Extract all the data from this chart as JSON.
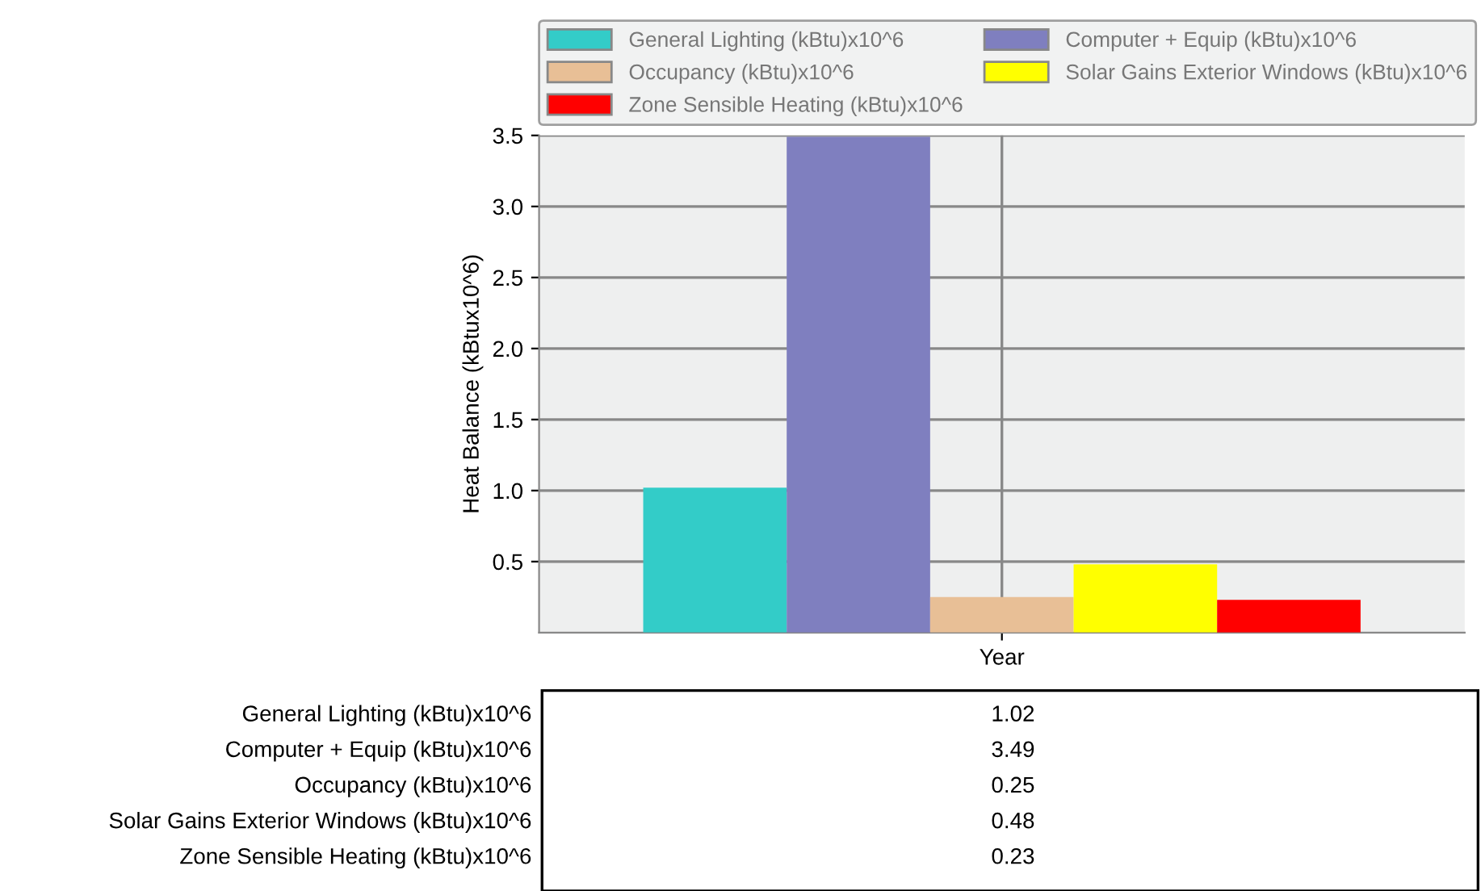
{
  "chart_data": {
    "type": "bar",
    "ylabel": "Heat Balance (kBtux10^6)",
    "categories": [
      "Year"
    ],
    "series": [
      {
        "name": "General Lighting (kBtu)x10^6",
        "color": "#33ccc8",
        "values": [
          1.02
        ]
      },
      {
        "name": "Computer + Equip (kBtu)x10^6",
        "color": "#7f7fbf",
        "values": [
          3.49
        ]
      },
      {
        "name": "Occupancy (kBtu)x10^6",
        "color": "#e8bf96",
        "values": [
          0.25
        ]
      },
      {
        "name": "Solar Gains Exterior Windows (kBtu)x10^6",
        "color": "#ffff00",
        "values": [
          0.48
        ]
      },
      {
        "name": "Zone Sensible Heating (kBtu)x10^6",
        "color": "#ff0000",
        "values": [
          0.23
        ]
      }
    ],
    "ylim": [
      0,
      3.5
    ],
    "yticks": [
      0.5,
      {
        "value": 1,
        "label": "1.0"
      },
      1.5,
      {
        "value": 2,
        "label": "2.0"
      },
      2.5,
      {
        "value": 3,
        "label": "3.0"
      },
      3.5
    ],
    "grid": true,
    "legend": "top",
    "annotations": [
      "1.02",
      "3.49",
      "0.25",
      "0.48",
      "0.23"
    ]
  }
}
